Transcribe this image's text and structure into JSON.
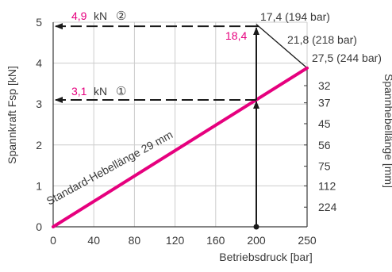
{
  "chart_data": {
    "type": "line",
    "xlabel": "Betriebsdruck [bar]",
    "ylabel": "Spannkraft Fsp [kN]",
    "ylabel_right": "Spannhebellänge [mm]",
    "x_ticks": [
      "0",
      "40",
      "80",
      "120",
      "160",
      "200",
      "250"
    ],
    "x_tick_values": [
      0,
      40,
      80,
      120,
      160,
      200,
      250
    ],
    "y_ticks": [
      "0",
      "1",
      "2",
      "3",
      "4",
      "5"
    ],
    "y_tick_values": [
      0,
      1,
      2,
      3,
      4,
      5
    ],
    "xlim": [
      0,
      250
    ],
    "ylim": [
      0,
      5
    ],
    "grid": true,
    "colors": {
      "series": "#e6007e",
      "axis": "#3a3a3a",
      "grid": "#cccccc",
      "highlight": "#e6007e"
    },
    "series": [
      {
        "name": "Standard-Hebellänge 29 mm",
        "x": [
          0,
          250
        ],
        "y": [
          0,
          3.88
        ]
      }
    ],
    "limit_curve": {
      "points": [
        {
          "x": 200,
          "y": 4.95,
          "label": "17,4 (194 bar)"
        },
        {
          "x": 250,
          "y": 3.88,
          "label": "27,5 (244 bar)"
        }
      ],
      "mid_label": "21,8 (218 bar)"
    },
    "right_axis": {
      "labels": [
        "32",
        "37",
        "45",
        "56",
        "75",
        "112",
        "224"
      ],
      "y_positions": [
        3.45,
        3.03,
        2.52,
        2.0,
        1.48,
        1.0,
        0.48
      ]
    },
    "annotations": {
      "arrow1_value": "3,1",
      "arrow1_unit": "kN",
      "arrow1_marker": "①",
      "arrow1_y": 3.1,
      "arrow2_value": "4,9",
      "arrow2_unit": "kN",
      "arrow2_marker": "②",
      "arrow2_y": 4.9,
      "vertical_x": 200,
      "lever_value": "18,4"
    }
  }
}
